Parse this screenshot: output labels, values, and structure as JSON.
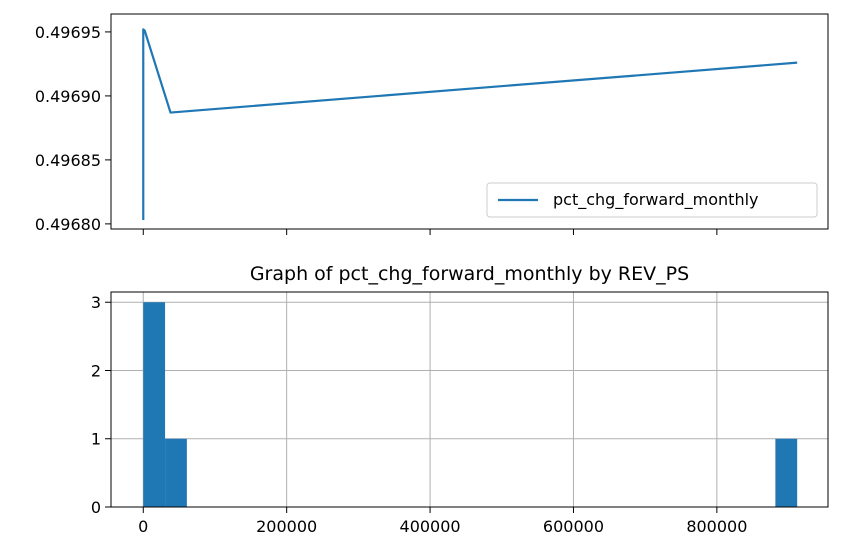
{
  "chart_data": [
    {
      "type": "line",
      "title": "",
      "xlabel": "",
      "ylabel": "",
      "xlim": [
        -45000,
        955000
      ],
      "ylim": [
        0.496796,
        0.496964
      ],
      "x_ticks": [
        0,
        200000,
        400000,
        600000,
        800000
      ],
      "x_ticklabels_visible": false,
      "y_ticks": [
        0.4968,
        0.49685,
        0.4969,
        0.49695
      ],
      "y_ticklabels": [
        "0.49680",
        "0.49685",
        "0.49690",
        "0.49695"
      ],
      "grid": false,
      "legend": {
        "placement": "lower right",
        "entries": [
          "pct_chg_forward_monthly"
        ]
      },
      "series": [
        {
          "name": "pct_chg_forward_monthly",
          "color": "#1f77b4",
          "x": [
            0,
            0,
            2000,
            38000,
            912000
          ],
          "y": [
            0.496803,
            0.496952,
            0.496951,
            0.496887,
            0.496926
          ]
        }
      ]
    },
    {
      "type": "bar",
      "title": "Graph of pct_chg_forward_monthly by REV_PS",
      "xlabel": "",
      "ylabel": "",
      "xlim": [
        -45000,
        955000
      ],
      "ylim": [
        0,
        3.15
      ],
      "x_ticks": [
        0,
        200000,
        400000,
        600000,
        800000
      ],
      "x_ticklabels": [
        "0",
        "200000",
        "400000",
        "600000",
        "800000"
      ],
      "y_ticks": [
        0,
        1,
        2,
        3
      ],
      "y_ticklabels": [
        "0",
        "1",
        "2",
        "3"
      ],
      "grid": true,
      "color": "#1f77b4",
      "bins": [
        {
          "start": 0,
          "end": 30400,
          "count": 3
        },
        {
          "start": 30400,
          "end": 60800,
          "count": 1
        },
        {
          "start": 881600,
          "end": 912000,
          "count": 1
        }
      ]
    }
  ]
}
